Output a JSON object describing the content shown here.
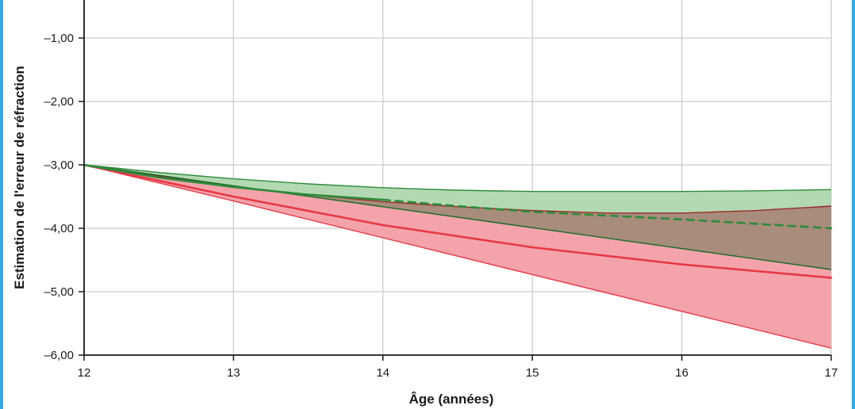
{
  "chart_data": {
    "type": "area",
    "xlabel": "Âge (années)",
    "ylabel": "Estimation de l'erreur de réfraction",
    "xlim": [
      12,
      17
    ],
    "ylim": [
      -6.0,
      -0.4
    ],
    "grid": true,
    "x_ticks": [
      {
        "value": 12,
        "label": "12"
      },
      {
        "value": 13,
        "label": "13"
      },
      {
        "value": 14,
        "label": "14"
      },
      {
        "value": 15,
        "label": "15"
      },
      {
        "value": 16,
        "label": "16"
      },
      {
        "value": 17,
        "label": "17"
      }
    ],
    "y_ticks": [
      {
        "value": -1,
        "label": "–1,00"
      },
      {
        "value": -2,
        "label": "–2,00"
      },
      {
        "value": -3,
        "label": "–3,00"
      },
      {
        "value": -4,
        "label": "–4,00"
      },
      {
        "value": -5,
        "label": "–5,00"
      },
      {
        "value": -6,
        "label": "–6,00"
      }
    ],
    "bands": [
      {
        "color": "#f4a3ab",
        "stroke": "#e63946",
        "upper": [
          [
            12,
            -3.0
          ],
          [
            12.5,
            -3.18
          ],
          [
            13,
            -3.34
          ],
          [
            13.5,
            -3.47
          ],
          [
            14,
            -3.58
          ],
          [
            14.5,
            -3.66
          ],
          [
            15,
            -3.72
          ],
          [
            15.5,
            -3.76
          ],
          [
            16,
            -3.76
          ],
          [
            16.5,
            -3.72
          ],
          [
            17,
            -3.65
          ]
        ],
        "lower": [
          [
            12,
            -3.0
          ],
          [
            13,
            -3.57
          ],
          [
            14,
            -4.15
          ],
          [
            15,
            -4.73
          ],
          [
            16,
            -5.31
          ],
          [
            17,
            -5.89
          ]
        ]
      },
      {
        "color": "#b3d9b3",
        "stroke": "#2e8b3a",
        "upper": [
          [
            12,
            -3.0
          ],
          [
            12.5,
            -3.12
          ],
          [
            13,
            -3.22
          ],
          [
            13.5,
            -3.3
          ],
          [
            14,
            -3.36
          ],
          [
            14.5,
            -3.4
          ],
          [
            15,
            -3.42
          ],
          [
            15.5,
            -3.42
          ],
          [
            16,
            -3.42
          ],
          [
            16.5,
            -3.41
          ],
          [
            17,
            -3.39
          ]
        ],
        "lower": [
          [
            12,
            -3.0
          ],
          [
            13,
            -3.33
          ],
          [
            14,
            -3.66
          ],
          [
            15,
            -3.99
          ],
          [
            16,
            -4.32
          ],
          [
            17,
            -4.65
          ]
        ]
      }
    ],
    "overlap_color": "#a88c7c",
    "series": [
      {
        "color": "#e63946",
        "style": "solid",
        "x": [
          12,
          13,
          14,
          15,
          16,
          17
        ],
        "y": [
          -3.0,
          -3.5,
          -3.95,
          -4.3,
          -4.57,
          -4.78
        ]
      },
      {
        "color": "#2e8b3a",
        "style": "solid",
        "x": [
          12,
          12.5,
          13,
          13.5,
          14
        ],
        "y": [
          -3.0,
          -3.2,
          -3.35,
          -3.47,
          -3.55
        ]
      },
      {
        "color": "#2e8b3a",
        "style": "dashed",
        "x": [
          14,
          14.5,
          15,
          15.5,
          16,
          16.5,
          17
        ],
        "y": [
          -3.55,
          -3.65,
          -3.74,
          -3.8,
          -3.86,
          -3.93,
          -4.0
        ]
      }
    ]
  }
}
